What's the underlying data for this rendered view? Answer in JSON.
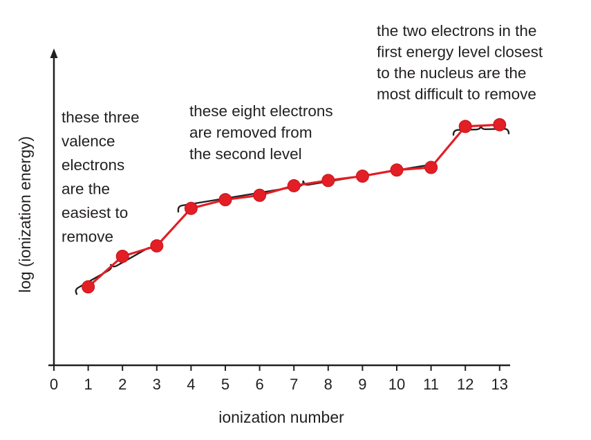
{
  "chart_data": {
    "type": "line",
    "title": "",
    "xlabel": "ionization number",
    "ylabel": "log (ionization energy)",
    "xlim": [
      0,
      13
    ],
    "x_ticks": [
      "0",
      "1",
      "2",
      "3",
      "4",
      "5",
      "6",
      "7",
      "8",
      "9",
      "10",
      "11",
      "12",
      "13"
    ],
    "y_ticks": [],
    "grid": false,
    "y_scale": "log",
    "series": [
      {
        "color": "#e31e25",
        "x": [
          1,
          2,
          3,
          4,
          5,
          6,
          7,
          8,
          9,
          10,
          11,
          12,
          13
        ],
        "y": [
          0.9,
          1.25,
          1.37,
          1.8,
          1.9,
          1.95,
          2.06,
          2.12,
          2.17,
          2.24,
          2.27,
          2.74,
          2.76
        ]
      }
    ],
    "annotations": [
      {
        "lines": [
          "these three",
          "valence",
          "electrons",
          "are the",
          "easiest to",
          "remove"
        ],
        "bracket_x": [
          1,
          3
        ]
      },
      {
        "lines": [
          "these eight electrons",
          "are removed from",
          "the second level"
        ],
        "bracket_x": [
          4,
          11
        ]
      },
      {
        "lines": [
          "the two electrons in the",
          "first energy level closest",
          "to the nucleus are the",
          "most difficult to remove"
        ],
        "bracket_x": [
          12,
          13
        ]
      }
    ]
  }
}
